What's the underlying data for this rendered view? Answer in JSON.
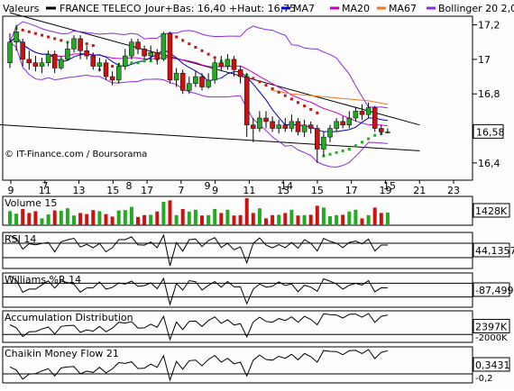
{
  "header": {
    "name_label": "Valeurs",
    "security": "FRANCE TELECO",
    "quote": "Jour+Bas: 16,40 +Haut: 16,75",
    "legend": [
      {
        "label": "MA7",
        "color": "#0000cc"
      },
      {
        "label": "MA20",
        "color": "#cc00cc"
      },
      {
        "label": "MA67",
        "color": "#ee7722"
      },
      {
        "label": "Bollinger 20 2,0",
        "color": "#8a2be2"
      }
    ]
  },
  "credit": "© IT-Finance.com / Boursorama",
  "colors": {
    "up": "#22aa22",
    "down": "#cc1111",
    "panel_bg": "#fdfdfd",
    "axis": "#000000"
  },
  "chart_data": [
    {
      "type": "candlestick",
      "title": "FRANCE TELECO",
      "ylim": [
        16.3,
        17.25
      ],
      "y_ticks": [
        "17,2",
        "17",
        "16,8",
        "16,6",
        "16,4"
      ],
      "x_day_ticks": [
        "9",
        "11",
        "13",
        "15",
        "17",
        "7",
        "9",
        "11",
        "13",
        "15",
        "17",
        "19",
        "21",
        "23"
      ],
      "x_month_ticks": [
        "7",
        "8",
        "9",
        "14",
        "15"
      ],
      "last_value": "16,58",
      "candles": [
        {
          "o": 16.98,
          "c": 17.1,
          "h": 17.15,
          "l": 16.95
        },
        {
          "o": 17.1,
          "c": 17.16,
          "h": 17.2,
          "l": 17.05
        },
        {
          "o": 17.1,
          "c": 17.0,
          "h": 17.12,
          "l": 16.96
        },
        {
          "o": 17.0,
          "c": 16.98,
          "h": 17.05,
          "l": 16.94
        },
        {
          "o": 16.98,
          "c": 16.96,
          "h": 17.02,
          "l": 16.93
        },
        {
          "o": 16.96,
          "c": 16.98,
          "h": 17.01,
          "l": 16.92
        },
        {
          "o": 16.98,
          "c": 17.03,
          "h": 17.05,
          "l": 16.96
        },
        {
          "o": 17.03,
          "c": 16.95,
          "h": 17.05,
          "l": 16.92
        },
        {
          "o": 16.95,
          "c": 17.0,
          "h": 17.02,
          "l": 16.94
        },
        {
          "o": 17.0,
          "c": 17.06,
          "h": 17.1,
          "l": 16.99
        },
        {
          "o": 17.06,
          "c": 17.12,
          "h": 17.14,
          "l": 17.04
        },
        {
          "o": 17.12,
          "c": 17.05,
          "h": 17.14,
          "l": 17.0
        },
        {
          "o": 17.05,
          "c": 17.02,
          "h": 17.08,
          "l": 17.0
        },
        {
          "o": 17.02,
          "c": 16.96,
          "h": 17.04,
          "l": 16.94
        },
        {
          "o": 16.96,
          "c": 16.98,
          "h": 17.01,
          "l": 16.93
        },
        {
          "o": 16.98,
          "c": 16.9,
          "h": 17.0,
          "l": 16.88
        },
        {
          "o": 16.9,
          "c": 16.88,
          "h": 16.93,
          "l": 16.85
        },
        {
          "o": 16.88,
          "c": 16.96,
          "h": 16.98,
          "l": 16.86
        },
        {
          "o": 16.96,
          "c": 17.02,
          "h": 17.06,
          "l": 16.94
        },
        {
          "o": 17.02,
          "c": 17.1,
          "h": 17.12,
          "l": 17.0
        },
        {
          "o": 17.1,
          "c": 17.06,
          "h": 17.12,
          "l": 17.03
        },
        {
          "o": 17.06,
          "c": 17.02,
          "h": 17.08,
          "l": 17.0
        },
        {
          "o": 17.02,
          "c": 17.04,
          "h": 17.08,
          "l": 16.99
        },
        {
          "o": 17.04,
          "c": 17.0,
          "h": 17.06,
          "l": 16.97
        },
        {
          "o": 17.0,
          "c": 17.15,
          "h": 17.16,
          "l": 16.99
        },
        {
          "o": 17.15,
          "c": 16.88,
          "h": 17.16,
          "l": 16.86
        },
        {
          "o": 16.88,
          "c": 16.92,
          "h": 16.95,
          "l": 16.84
        },
        {
          "o": 16.92,
          "c": 16.82,
          "h": 16.94,
          "l": 16.8
        },
        {
          "o": 16.82,
          "c": 16.86,
          "h": 16.9,
          "l": 16.8
        },
        {
          "o": 16.86,
          "c": 16.9,
          "h": 16.93,
          "l": 16.84
        },
        {
          "o": 16.9,
          "c": 16.84,
          "h": 16.92,
          "l": 16.82
        },
        {
          "o": 16.84,
          "c": 16.88,
          "h": 16.92,
          "l": 16.83
        },
        {
          "o": 16.88,
          "c": 16.98,
          "h": 17.0,
          "l": 16.86
        },
        {
          "o": 16.98,
          "c": 16.96,
          "h": 17.02,
          "l": 16.93
        },
        {
          "o": 16.96,
          "c": 17.0,
          "h": 17.03,
          "l": 16.94
        },
        {
          "o": 17.0,
          "c": 16.94,
          "h": 17.02,
          "l": 16.9
        },
        {
          "o": 16.94,
          "c": 16.9,
          "h": 16.96,
          "l": 16.86
        },
        {
          "o": 16.9,
          "c": 16.62,
          "h": 16.92,
          "l": 16.55
        },
        {
          "o": 16.62,
          "c": 16.6,
          "h": 16.66,
          "l": 16.52
        },
        {
          "o": 16.6,
          "c": 16.66,
          "h": 16.7,
          "l": 16.58
        },
        {
          "o": 16.66,
          "c": 16.64,
          "h": 16.7,
          "l": 16.6
        },
        {
          "o": 16.64,
          "c": 16.6,
          "h": 16.67,
          "l": 16.58
        },
        {
          "o": 16.6,
          "c": 16.62,
          "h": 16.65,
          "l": 16.57
        },
        {
          "o": 16.62,
          "c": 16.6,
          "h": 16.66,
          "l": 16.58
        },
        {
          "o": 16.6,
          "c": 16.64,
          "h": 16.68,
          "l": 16.58
        },
        {
          "o": 16.64,
          "c": 16.58,
          "h": 16.66,
          "l": 16.56
        },
        {
          "o": 16.58,
          "c": 16.62,
          "h": 16.65,
          "l": 16.55
        },
        {
          "o": 16.62,
          "c": 16.6,
          "h": 16.64,
          "l": 16.57
        },
        {
          "o": 16.6,
          "c": 16.48,
          "h": 16.62,
          "l": 16.4
        },
        {
          "o": 16.48,
          "c": 16.55,
          "h": 16.58,
          "l": 16.44
        },
        {
          "o": 16.55,
          "c": 16.6,
          "h": 16.62,
          "l": 16.52
        },
        {
          "o": 16.6,
          "c": 16.64,
          "h": 16.66,
          "l": 16.58
        },
        {
          "o": 16.64,
          "c": 16.62,
          "h": 16.67,
          "l": 16.6
        },
        {
          "o": 16.62,
          "c": 16.66,
          "h": 16.7,
          "l": 16.6
        },
        {
          "o": 16.66,
          "c": 16.7,
          "h": 16.72,
          "l": 16.64
        },
        {
          "o": 16.7,
          "c": 16.68,
          "h": 16.74,
          "l": 16.65
        },
        {
          "o": 16.68,
          "c": 16.72,
          "h": 16.75,
          "l": 16.66
        },
        {
          "o": 16.72,
          "c": 16.6,
          "h": 16.73,
          "l": 16.58
        },
        {
          "o": 16.6,
          "c": 16.58,
          "h": 16.62,
          "l": 16.56
        },
        {
          "o": 16.58,
          "c": 16.58,
          "h": 16.6,
          "l": 16.57
        }
      ],
      "psar": [
        {
          "i": 1,
          "v": 17.18
        },
        {
          "i": 2,
          "v": 17.17
        },
        {
          "i": 3,
          "v": 17.16
        },
        {
          "i": 4,
          "v": 17.15
        },
        {
          "i": 5,
          "v": 17.14
        },
        {
          "i": 6,
          "v": 17.13
        },
        {
          "i": 7,
          "v": 17.12
        },
        {
          "i": 8,
          "v": 17.11
        },
        {
          "i": 9,
          "v": 17.1
        },
        {
          "i": 10,
          "v": 17.1
        },
        {
          "i": 11,
          "v": 17.09
        },
        {
          "i": 12,
          "v": 17.09
        },
        {
          "i": 13,
          "v": 17.08
        },
        {
          "i": 14,
          "v": 16.94
        },
        {
          "i": 15,
          "v": 16.95
        },
        {
          "i": 16,
          "v": 16.96
        },
        {
          "i": 17,
          "v": 16.97
        },
        {
          "i": 18,
          "v": 16.97
        },
        {
          "i": 19,
          "v": 16.98
        },
        {
          "i": 20,
          "v": 16.98
        },
        {
          "i": 21,
          "v": 16.99
        },
        {
          "i": 22,
          "v": 16.99
        },
        {
          "i": 23,
          "v": 17.0
        },
        {
          "i": 25,
          "v": 17.15
        },
        {
          "i": 26,
          "v": 17.13
        },
        {
          "i": 27,
          "v": 17.11
        },
        {
          "i": 28,
          "v": 17.09
        },
        {
          "i": 29,
          "v": 17.07
        },
        {
          "i": 30,
          "v": 17.05
        },
        {
          "i": 31,
          "v": 17.03
        },
        {
          "i": 32,
          "v": 17.01
        },
        {
          "i": 33,
          "v": 16.99
        },
        {
          "i": 34,
          "v": 16.97
        },
        {
          "i": 35,
          "v": 16.95
        },
        {
          "i": 36,
          "v": 16.93
        },
        {
          "i": 37,
          "v": 16.91
        },
        {
          "i": 38,
          "v": 16.89
        },
        {
          "i": 39,
          "v": 16.87
        },
        {
          "i": 40,
          "v": 16.85
        },
        {
          "i": 41,
          "v": 16.83
        },
        {
          "i": 42,
          "v": 16.81
        },
        {
          "i": 43,
          "v": 16.79
        },
        {
          "i": 44,
          "v": 16.77
        },
        {
          "i": 45,
          "v": 16.75
        },
        {
          "i": 46,
          "v": 16.73
        },
        {
          "i": 47,
          "v": 16.71
        },
        {
          "i": 48,
          "v": 16.69
        },
        {
          "i": 49,
          "v": 16.44
        },
        {
          "i": 50,
          "v": 16.45
        },
        {
          "i": 51,
          "v": 16.46
        },
        {
          "i": 52,
          "v": 16.47
        },
        {
          "i": 53,
          "v": 16.48
        },
        {
          "i": 54,
          "v": 16.5
        },
        {
          "i": 55,
          "v": 16.52
        },
        {
          "i": 56,
          "v": 16.54
        },
        {
          "i": 57,
          "v": 16.56
        },
        {
          "i": 58,
          "v": 16.57
        }
      ],
      "ma67": [
        [
          41,
          16.82
        ],
        [
          44,
          16.8
        ],
        [
          47,
          16.79
        ],
        [
          50,
          16.78
        ],
        [
          53,
          16.77
        ],
        [
          56,
          16.76
        ],
        [
          59,
          16.74
        ]
      ],
      "trendlines": [
        [
          [
            0,
            17.27
          ],
          [
            64,
            16.62
          ]
        ],
        [
          [
            -14,
            16.65
          ],
          [
            64,
            16.47
          ]
        ]
      ]
    },
    {
      "type": "bar",
      "title": "Volume 15",
      "last_value": "1428K"
    },
    {
      "type": "line",
      "title": "RSI 14",
      "last_value": "44,1357"
    },
    {
      "type": "line",
      "title": "Williams %R 14",
      "last_value": "-87,4993"
    },
    {
      "type": "line",
      "title": "Accumulation Distribution",
      "last_value": "2397K",
      "ticks": [
        "-2000K"
      ]
    },
    {
      "type": "line",
      "title": "Chaikin Money Flow 21",
      "last_value": "0,3431",
      "ticks": [
        "-0,2"
      ]
    }
  ]
}
